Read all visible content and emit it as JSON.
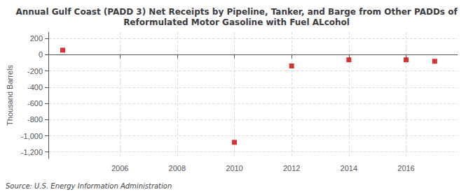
{
  "chart_data": {
    "type": "scatter",
    "title": "Annual Gulf Coast (PADD 3) Net Receipts by Pipeline, Tanker, and Barge from Other PADDs of\nReformulated Motor Gasoline with Fuel ALcohol",
    "ylabel": "Thousand Barrels",
    "source": "Source: U.S. Energy Information Administration",
    "x": [
      2004,
      2010,
      2012,
      2014,
      2016,
      2017
    ],
    "values": [
      57,
      -1080,
      -138,
      -62,
      -62,
      -80
    ],
    "color": "#cc0000",
    "marker": "square",
    "xlim": [
      2003.5,
      2017.8
    ],
    "ylim": [
      -1280,
      280
    ],
    "xticks": [
      2006,
      2008,
      2010,
      2012,
      2014,
      2016
    ],
    "yticks": [
      {
        "value": -1200,
        "label": "-1,200"
      },
      {
        "value": -1000,
        "label": "-1,000"
      },
      -800,
      -600,
      -400,
      -200,
      0,
      200
    ],
    "grid": true
  }
}
